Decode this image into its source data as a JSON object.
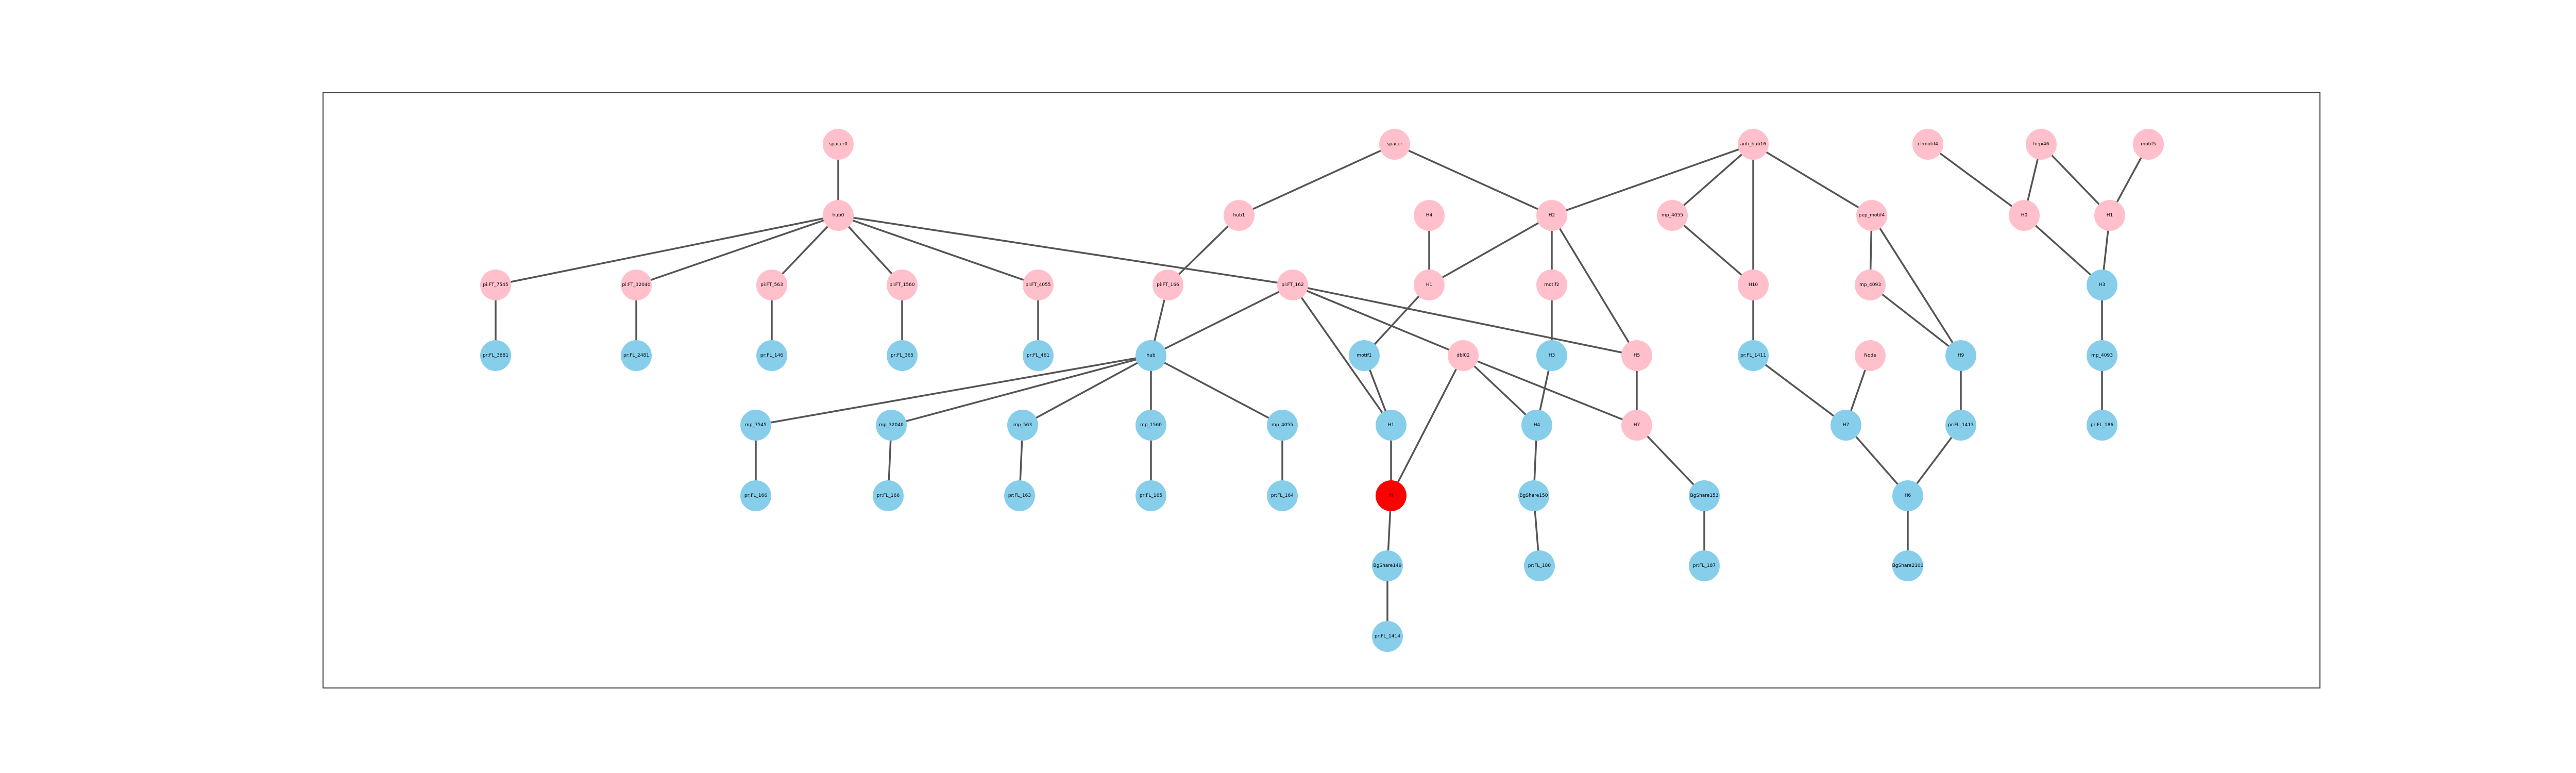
{
  "colors": {
    "pink": "#FFC0CB",
    "blue": "#87CEEB",
    "red": "#FF0000",
    "edge": "#555555"
  },
  "nodes": [
    {
      "id": "n1",
      "label": "spacer0",
      "color": "pink"
    },
    {
      "id": "n2",
      "label": "hub0",
      "color": "pink"
    },
    {
      "id": "n3",
      "label": "pi:FT_7545",
      "color": "pink"
    },
    {
      "id": "n4",
      "label": "pi:FT_32040",
      "color": "pink"
    },
    {
      "id": "n5",
      "label": "pi:FT_563",
      "color": "pink"
    },
    {
      "id": "n6",
      "label": "pi:FT_1560",
      "color": "pink"
    },
    {
      "id": "n7",
      "label": "pi:FT_4055",
      "color": "pink"
    },
    {
      "id": "n8",
      "label": "pr:FL_3881",
      "color": "blue"
    },
    {
      "id": "n9",
      "label": "pr:FL_2481",
      "color": "blue"
    },
    {
      "id": "n10",
      "label": "pr:FL_146",
      "color": "blue"
    },
    {
      "id": "n11",
      "label": "pr:FL_365",
      "color": "blue"
    },
    {
      "id": "n12",
      "label": "pr:FL_461",
      "color": "blue"
    },
    {
      "id": "n13",
      "label": "spacer",
      "color": "pink"
    },
    {
      "id": "n14",
      "label": "hub1",
      "color": "pink"
    },
    {
      "id": "n15",
      "label": "pi:FT_166",
      "color": "pink"
    },
    {
      "id": "n16",
      "label": "pi:FT_162",
      "color": "pink"
    },
    {
      "id": "n17",
      "label": "hub",
      "color": "blue"
    },
    {
      "id": "n18",
      "label": "mp_7545",
      "color": "blue"
    },
    {
      "id": "n19",
      "label": "mp_32040",
      "color": "blue"
    },
    {
      "id": "n20",
      "label": "mp_563",
      "color": "blue"
    },
    {
      "id": "n21",
      "label": "mp_1560",
      "color": "blue"
    },
    {
      "id": "n22",
      "label": "mp_4055",
      "color": "blue"
    },
    {
      "id": "n23",
      "label": "pr:FL_166",
      "color": "blue"
    },
    {
      "id": "n24",
      "label": "pr:FL_166",
      "color": "blue"
    },
    {
      "id": "n25",
      "label": "pr:FL_163",
      "color": "blue"
    },
    {
      "id": "n26",
      "label": "pr:FL_165",
      "color": "blue"
    },
    {
      "id": "n27",
      "label": "pr:FL_164",
      "color": "blue"
    },
    {
      "id": "n28",
      "label": "H4",
      "color": "pink"
    },
    {
      "id": "n29",
      "label": "H2",
      "color": "pink"
    },
    {
      "id": "n30",
      "label": "H1",
      "color": "pink"
    },
    {
      "id": "n31",
      "label": "motif1",
      "color": "blue"
    },
    {
      "id": "n32",
      "label": "H1",
      "color": "blue"
    },
    {
      "id": "n33",
      "label": "H",
      "color": "red"
    },
    {
      "id": "n34",
      "label": "BgShare149",
      "color": "blue"
    },
    {
      "id": "n35",
      "label": "pr:FL_1414",
      "color": "blue"
    },
    {
      "id": "n36",
      "label": "motif2",
      "color": "pink"
    },
    {
      "id": "n37",
      "label": "H3",
      "color": "blue"
    },
    {
      "id": "n38",
      "label": "H4",
      "color": "blue"
    },
    {
      "id": "n39",
      "label": "BgShare150",
      "color": "blue"
    },
    {
      "id": "n40",
      "label": "pr:FL_180",
      "color": "blue"
    },
    {
      "id": "n41",
      "label": "dbl02",
      "color": "pink"
    },
    {
      "id": "n42",
      "label": "H5",
      "color": "pink"
    },
    {
      "id": "n43",
      "label": "H7",
      "color": "pink"
    },
    {
      "id": "n44",
      "label": "BgShare153",
      "color": "blue"
    },
    {
      "id": "n45",
      "label": "pr:FL_187",
      "color": "blue"
    },
    {
      "id": "n46",
      "label": "anti_hub16",
      "color": "pink"
    },
    {
      "id": "n47",
      "label": "mp_4055",
      "color": "pink"
    },
    {
      "id": "n48",
      "label": "H10",
      "color": "pink"
    },
    {
      "id": "n49",
      "label": "pr:FL_1411",
      "color": "blue"
    },
    {
      "id": "n50",
      "label": "pep_motif4",
      "color": "pink"
    },
    {
      "id": "n51",
      "label": "mp_4093",
      "color": "pink"
    },
    {
      "id": "n52",
      "label": "Node",
      "color": "pink"
    },
    {
      "id": "n53",
      "label": "H7",
      "color": "blue"
    },
    {
      "id": "n54",
      "label": "H9",
      "color": "blue"
    },
    {
      "id": "n55",
      "label": "pr:FL_1413",
      "color": "blue"
    },
    {
      "id": "n56",
      "label": "H6",
      "color": "blue"
    },
    {
      "id": "n57",
      "label": "BgShare2100",
      "color": "blue"
    },
    {
      "id": "n58",
      "label": "cl:motif4",
      "color": "pink"
    },
    {
      "id": "n59",
      "label": "hi:pi46",
      "color": "pink"
    },
    {
      "id": "n60",
      "label": "motif5",
      "color": "pink"
    },
    {
      "id": "n61",
      "label": "H0",
      "color": "pink"
    },
    {
      "id": "n62",
      "label": "H1",
      "color": "pink"
    },
    {
      "id": "n63",
      "label": "H3",
      "color": "blue"
    },
    {
      "id": "n64",
      "label": "mp_4093",
      "color": "blue"
    },
    {
      "id": "n65",
      "label": "pr:FL_186",
      "color": "blue"
    }
  ],
  "edges": [
    [
      "n1",
      "n2"
    ],
    [
      "n2",
      "n3"
    ],
    [
      "n2",
      "n4"
    ],
    [
      "n2",
      "n5"
    ],
    [
      "n2",
      "n6"
    ],
    [
      "n2",
      "n7"
    ],
    [
      "n2",
      "n16"
    ],
    [
      "n3",
      "n8"
    ],
    [
      "n4",
      "n9"
    ],
    [
      "n5",
      "n10"
    ],
    [
      "n6",
      "n11"
    ],
    [
      "n7",
      "n12"
    ],
    [
      "n13",
      "n14"
    ],
    [
      "n13",
      "n29"
    ],
    [
      "n14",
      "n15"
    ],
    [
      "n15",
      "n17"
    ],
    [
      "n16",
      "n17"
    ],
    [
      "n16",
      "n32"
    ],
    [
      "n16",
      "n42"
    ],
    [
      "n16",
      "n41"
    ],
    [
      "n17",
      "n18"
    ],
    [
      "n17",
      "n19"
    ],
    [
      "n17",
      "n20"
    ],
    [
      "n17",
      "n21"
    ],
    [
      "n17",
      "n22"
    ],
    [
      "n18",
      "n23"
    ],
    [
      "n19",
      "n24"
    ],
    [
      "n20",
      "n25"
    ],
    [
      "n21",
      "n26"
    ],
    [
      "n22",
      "n27"
    ],
    [
      "n28",
      "n30"
    ],
    [
      "n29",
      "n30"
    ],
    [
      "n29",
      "n36"
    ],
    [
      "n29",
      "n42"
    ],
    [
      "n36",
      "n37"
    ],
    [
      "n30",
      "n31"
    ],
    [
      "n31",
      "n32"
    ],
    [
      "n32",
      "n33"
    ],
    [
      "n41",
      "n33"
    ],
    [
      "n41",
      "n38"
    ],
    [
      "n41",
      "n43"
    ],
    [
      "n33",
      "n34"
    ],
    [
      "n34",
      "n35"
    ],
    [
      "n37",
      "n38"
    ],
    [
      "n38",
      "n39"
    ],
    [
      "n39",
      "n40"
    ],
    [
      "n42",
      "n43"
    ],
    [
      "n43",
      "n44"
    ],
    [
      "n44",
      "n45"
    ],
    [
      "n46",
      "n29"
    ],
    [
      "n46",
      "n47"
    ],
    [
      "n46",
      "n48"
    ],
    [
      "n46",
      "n50"
    ],
    [
      "n47",
      "n48"
    ],
    [
      "n48",
      "n49"
    ],
    [
      "n49",
      "n53"
    ],
    [
      "n50",
      "n51"
    ],
    [
      "n50",
      "n54"
    ],
    [
      "n51",
      "n54"
    ],
    [
      "n52",
      "n53"
    ],
    [
      "n54",
      "n55"
    ],
    [
      "n55",
      "n56"
    ],
    [
      "n53",
      "n56"
    ],
    [
      "n56",
      "n57"
    ],
    [
      "n58",
      "n61"
    ],
    [
      "n59",
      "n61"
    ],
    [
      "n59",
      "n62"
    ],
    [
      "n60",
      "n62"
    ],
    [
      "n61",
      "n63"
    ],
    [
      "n62",
      "n63"
    ],
    [
      "n63",
      "n64"
    ],
    [
      "n64",
      "n65"
    ]
  ]
}
